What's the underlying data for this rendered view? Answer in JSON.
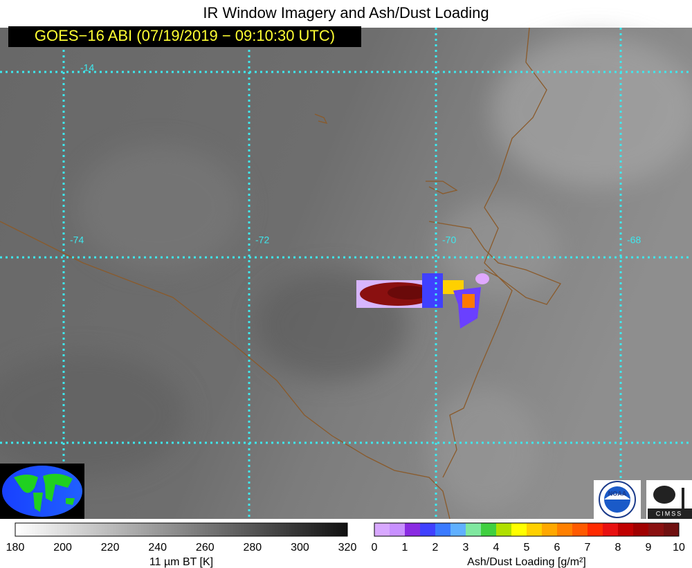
{
  "header": {
    "title": "IR Window Imagery and Ash/Dust Loading",
    "subtitle": "GOES−16 ABI (07/19/2019 − 09:10:30 UTC)"
  },
  "map": {
    "lat_labels": [
      "-14"
    ],
    "lon_labels": [
      "-74",
      "-72",
      "-70",
      "-68"
    ]
  },
  "colorbars": [
    {
      "ticks": [
        180,
        200,
        220,
        240,
        260,
        280,
        300,
        320
      ],
      "label": "11 µm BT [K]"
    },
    {
      "ticks": [
        0,
        1,
        2,
        3,
        4,
        5,
        6,
        7,
        8,
        9,
        10
      ],
      "label": "Ash/Dust Loading [g/m²]"
    }
  ],
  "logos": {
    "noaa": "NOAA",
    "cimss": "CIMSS"
  }
}
